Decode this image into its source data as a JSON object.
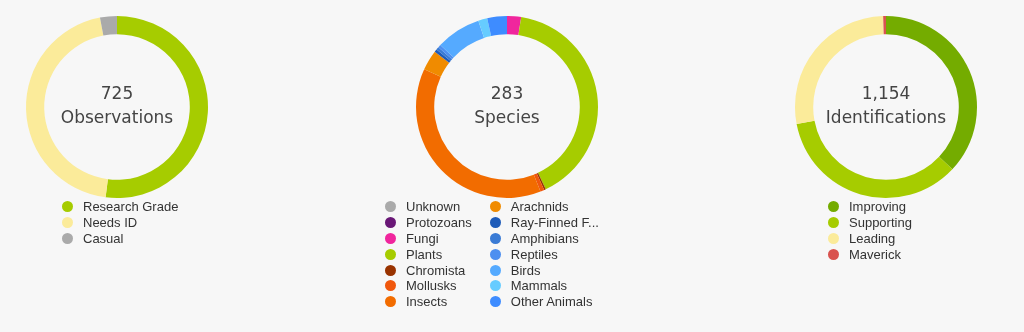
{
  "chart_data": [
    {
      "type": "donut",
      "annotations": [
        "725",
        "Observations"
      ],
      "legend": "bottom",
      "categories": [
        "Research Grade",
        "Needs ID",
        "Casual"
      ],
      "values": [
        52,
        45,
        3
      ],
      "colors": [
        "#a6cc00",
        "#fbeb9a",
        "#aaaaaa"
      ]
    },
    {
      "type": "donut",
      "annotations": [
        "283",
        "Species"
      ],
      "legend": "bottom",
      "categories": [
        "Unknown",
        "Protozoans",
        "Fungi",
        "Plants",
        "Chromista",
        "Mollusks",
        "Insects",
        "Arachnids",
        "Ray-Finned F...",
        "Amphibians",
        "Reptiles",
        "Birds",
        "Mammals",
        "Other Animals"
      ],
      "values": [
        0,
        0,
        2.5,
        40.5,
        0.3,
        0.7,
        37.8,
        3.6,
        0.5,
        0.5,
        0.5,
        8,
        1.6,
        3.5
      ],
      "colors": [
        "#aaaaaa",
        "#691776",
        "#f0269d",
        "#a6cc00",
        "#993300",
        "#f0570c",
        "#f26c00",
        "#f08b00",
        "#1e5bb8",
        "#3a7bd5",
        "#4d8ff0",
        "#55aaff",
        "#66ccff",
        "#3e8cff"
      ]
    },
    {
      "type": "donut",
      "annotations": [
        "1,154",
        "Identifications"
      ],
      "legend": "bottom",
      "categories": [
        "Improving",
        "Supporting",
        "Leading",
        "Maverick"
      ],
      "values": [
        37,
        35,
        27.5,
        0.5
      ],
      "colors": [
        "#74ac00",
        "#a6cc00",
        "#fbeb9a",
        "#d9534f"
      ]
    }
  ]
}
